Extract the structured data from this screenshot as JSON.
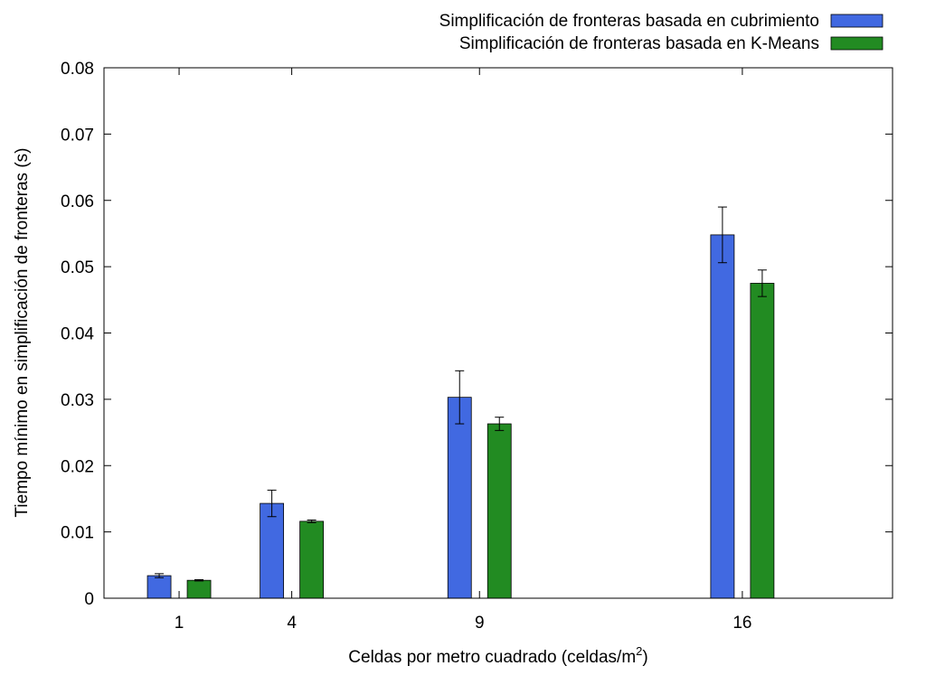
{
  "chart_data": {
    "type": "bar",
    "x": [
      1,
      4,
      9,
      16
    ],
    "xtick_labels": [
      "1",
      "4",
      "9",
      "16"
    ],
    "xlim": [
      -1,
      20
    ],
    "ylim": [
      0,
      0.08
    ],
    "yticks": [
      0,
      0.01,
      0.02,
      0.03,
      0.04,
      0.05,
      0.06,
      0.07,
      0.08
    ],
    "ytick_labels": [
      "0",
      "0.01",
      "0.02",
      "0.03",
      "0.04",
      "0.05",
      "0.06",
      "0.07",
      "0.08"
    ],
    "xlabel": "Celdas por metro cuadrado (celdas/m",
    "xlabel_sup": "2",
    "xlabel_end": ")",
    "ylabel": "Tiempo mínimo en simplificación de fronteras (s)",
    "grid": false,
    "legend_position": "top-right",
    "series": [
      {
        "name": "Simplificación de fronteras basada en cubrimiento",
        "color": "#4169e1",
        "values": [
          0.0034,
          0.0143,
          0.0303,
          0.0548
        ],
        "error": [
          0.0003,
          0.002,
          0.004,
          0.0042
        ]
      },
      {
        "name": "Simplificación de fronteras basada en K-Means",
        "color": "#228b22",
        "values": [
          0.0027,
          0.0116,
          0.0263,
          0.0475
        ],
        "error": [
          0.0001,
          0.0002,
          0.001,
          0.002
        ]
      }
    ]
  }
}
